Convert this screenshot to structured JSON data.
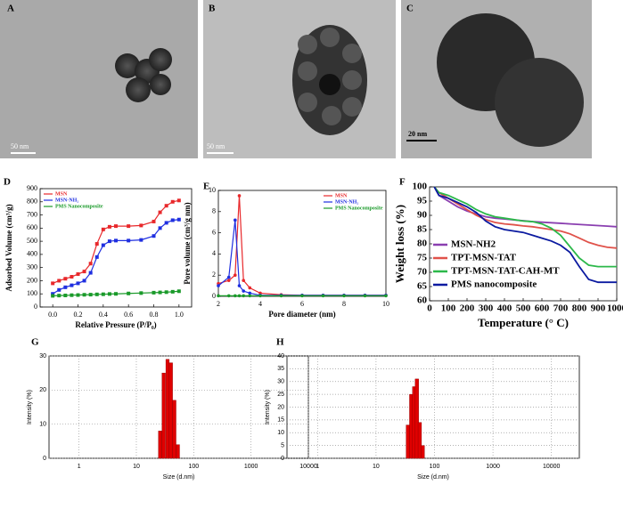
{
  "images": [
    {
      "label": "A",
      "scale_bar": "50 nm"
    },
    {
      "label": "B",
      "scale_bar": "50 nm"
    },
    {
      "label": "C",
      "scale_bar": "20 nm"
    }
  ],
  "chart_data": [
    {
      "panel": "D",
      "type": "line",
      "xlabel": "Relative Pressure (P/P₀)",
      "ylabel": "Adsorbed Volume (cm³/g)",
      "x": [
        0,
        0.05,
        0.1,
        0.15,
        0.2,
        0.25,
        0.3,
        0.35,
        0.4,
        0.45,
        0.5,
        0.6,
        0.7,
        0.8,
        0.85,
        0.9,
        0.95,
        1.0
      ],
      "series": [
        {
          "name": "MSN",
          "color": "#e8282b",
          "marker": "square",
          "values": [
            180,
            200,
            215,
            230,
            250,
            270,
            330,
            480,
            590,
            610,
            615,
            615,
            620,
            650,
            720,
            770,
            800,
            810
          ]
        },
        {
          "name": "MSN-NH₂",
          "color": "#1f2fe0",
          "marker": "square",
          "values": [
            100,
            130,
            150,
            165,
            180,
            200,
            260,
            380,
            470,
            500,
            505,
            505,
            510,
            540,
            600,
            640,
            660,
            665
          ]
        },
        {
          "name": "PMS Nanocomposite",
          "color": "#1a9a2a",
          "marker": "square",
          "values": [
            85,
            87,
            88,
            90,
            91,
            93,
            94,
            96,
            97,
            99,
            100,
            103,
            106,
            109,
            111,
            113,
            116,
            120
          ]
        }
      ],
      "xlim": [
        -0.1,
        1.1
      ],
      "ylim": [
        0,
        900
      ],
      "xticks": [
        {
          "value": 0,
          "label": "0.0"
        },
        {
          "value": 0.2,
          "label": "0.2"
        },
        {
          "value": 0.4,
          "label": "0.4"
        },
        {
          "value": 0.6,
          "label": "0.6"
        },
        {
          "value": 0.8,
          "label": "0.8"
        },
        {
          "value": 1,
          "label": "1.0"
        }
      ],
      "yticks": [
        0,
        100,
        200,
        300,
        400,
        500,
        600,
        700,
        800,
        900
      ],
      "legend": "upper-left"
    },
    {
      "panel": "E",
      "type": "line",
      "xlabel": "Pore diameter (nm)",
      "ylabel": "Pore volume (cm³/g nm)",
      "x": [
        2,
        2.5,
        2.8,
        3.0,
        3.2,
        3.5,
        4,
        5,
        6,
        7,
        8,
        9,
        10
      ],
      "series": [
        {
          "name": "MSN",
          "color": "#e8282b",
          "marker": "circle",
          "values": [
            1.2,
            1.5,
            2.0,
            9.5,
            1.5,
            0.8,
            0.3,
            0.15,
            0.1,
            0.1,
            0.1,
            0.1,
            0.1
          ]
        },
        {
          "name": "MSN-NH₂",
          "color": "#1f2fe0",
          "marker": "circle",
          "values": [
            1.0,
            1.8,
            7.2,
            1.0,
            0.5,
            0.3,
            0.1,
            0.1,
            0.1,
            0.1,
            0.1,
            0.1,
            0.1
          ]
        },
        {
          "name": "PMS Nanocomposite",
          "color": "#1a9a2a",
          "marker": "circle",
          "values": [
            0.05,
            0.05,
            0.05,
            0.05,
            0.05,
            0.05,
            0.05,
            0.05,
            0.05,
            0.05,
            0.05,
            0.05,
            0.05
          ]
        }
      ],
      "xlim": [
        2,
        10
      ],
      "ylim": [
        0,
        10
      ],
      "xticks": [
        2,
        4,
        6,
        8,
        10
      ],
      "yticks": [
        0,
        2,
        4,
        6,
        8,
        10
      ],
      "legend": "upper-right"
    },
    {
      "panel": "F",
      "type": "line",
      "xlabel": "Temperature (° C)",
      "ylabel": "Weight loss (%)",
      "x": [
        25,
        50,
        100,
        150,
        200,
        250,
        300,
        350,
        400,
        450,
        500,
        550,
        600,
        650,
        700,
        750,
        800,
        850,
        900,
        950,
        1000
      ],
      "series": [
        {
          "name": "MSN-NH2",
          "color": "#8a3fb0",
          "values": [
            100,
            97,
            95,
            93,
            91.5,
            90.5,
            89.5,
            89,
            88.7,
            88.4,
            88.1,
            87.8,
            87.6,
            87.4,
            87.2,
            87,
            86.8,
            86.6,
            86.4,
            86.2,
            86
          ]
        },
        {
          "name": "TPT-MSN-TAT",
          "color": "#e0524a",
          "values": [
            100,
            98,
            96,
            94,
            92,
            90,
            88.5,
            87.5,
            87,
            86.7,
            86.3,
            86,
            85.5,
            85,
            84.5,
            83.5,
            82,
            80.5,
            79.5,
            78.8,
            78.5
          ]
        },
        {
          "name": "TPT-MSN-TAT-CAH-MT",
          "color": "#2cb84a",
          "values": [
            100,
            98,
            97,
            95.5,
            94,
            92,
            90.5,
            89.5,
            89,
            88.5,
            88,
            87.8,
            87,
            85.5,
            83,
            79,
            75,
            72.5,
            72,
            72,
            72
          ]
        },
        {
          "name": "PMS nanocomposite",
          "color": "#0b1aa0",
          "values": [
            100,
            97,
            96,
            94.5,
            93,
            91,
            88,
            86,
            85,
            84.5,
            84,
            83,
            82,
            81,
            79.5,
            77,
            72,
            67.5,
            66.5,
            66.5,
            66.5
          ]
        }
      ],
      "xlim": [
        0,
        1000
      ],
      "ylim": [
        60,
        100
      ],
      "xticks": [
        0,
        100,
        200,
        300,
        400,
        500,
        600,
        700,
        800,
        900,
        1000
      ],
      "yticks": [
        60,
        65,
        70,
        75,
        80,
        85,
        90,
        95,
        100
      ],
      "legend": "lower-left"
    },
    {
      "panel": "G",
      "type": "bar",
      "xlabel": "Size (d.nm)",
      "ylabel": "Intensity (%)",
      "log_x": true,
      "grid": true,
      "color": "#e00000",
      "x": [
        26,
        30,
        35,
        40,
        46,
        53
      ],
      "values": [
        8,
        25,
        29,
        28,
        17,
        4
      ],
      "xlim": [
        0.3,
        10000
      ],
      "ylim": [
        0,
        30
      ],
      "xticks": [
        1,
        10,
        100,
        1000,
        10000
      ],
      "yticks": [
        0,
        10,
        20,
        30
      ]
    },
    {
      "panel": "H",
      "type": "bar",
      "xlabel": "Size (d.nm)",
      "ylabel": "Intensity (%)",
      "log_x": true,
      "grid": true,
      "color": "#e00000",
      "x": [
        35,
        40,
        45,
        50,
        56,
        63
      ],
      "values": [
        13,
        25,
        28,
        31,
        14,
        5
      ],
      "xlim": [
        0.3,
        30000
      ],
      "ylim": [
        0,
        40
      ],
      "xticks": [
        1,
        10,
        100,
        1000,
        10000
      ],
      "yticks": [
        0,
        5,
        10,
        15,
        20,
        25,
        30,
        35,
        40
      ]
    }
  ]
}
